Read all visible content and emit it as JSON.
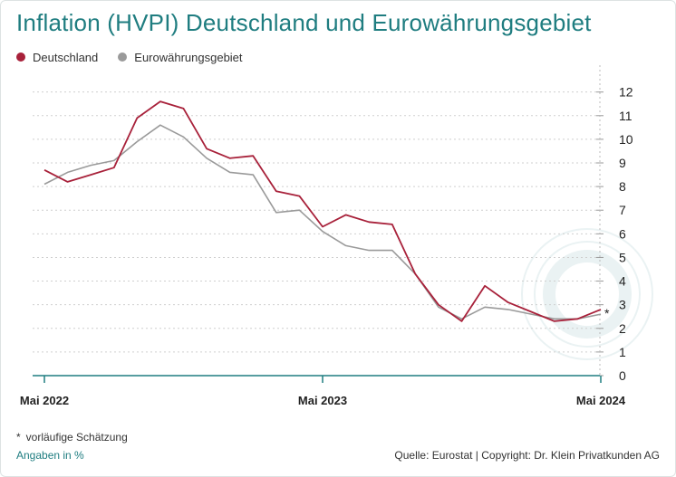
{
  "title": "Inflation (HVPI) Deutschland und Eurowährungsgebiet",
  "footnote": {
    "symbol": "*",
    "text": "vorläufige Schätzung"
  },
  "units_note": "Angaben in %",
  "source": "Quelle: Eurostat | Copyright: Dr. Klein Privatkunden AG",
  "watermark_icon": "euro-coin-icon",
  "chart_data": {
    "type": "line",
    "x": [
      "2022-05",
      "2022-06",
      "2022-07",
      "2022-08",
      "2022-09",
      "2022-10",
      "2022-11",
      "2022-12",
      "2023-01",
      "2023-02",
      "2023-03",
      "2023-04",
      "2023-05",
      "2023-06",
      "2023-07",
      "2023-08",
      "2023-09",
      "2023-10",
      "2023-11",
      "2023-12",
      "2024-01",
      "2024-02",
      "2024-03",
      "2024-04",
      "2024-05"
    ],
    "x_tick_labels": [
      {
        "x": "2022-05",
        "label": "Mai 2022"
      },
      {
        "x": "2023-05",
        "label": "Mai 2023"
      },
      {
        "x": "2024-05",
        "label": "Mai 2024"
      }
    ],
    "y_ticks": [
      0,
      1,
      2,
      3,
      4,
      5,
      6,
      7,
      8,
      9,
      10,
      11,
      12
    ],
    "ylim": [
      0,
      12.6
    ],
    "y_axis_side": "right",
    "grid": "horizontal-dotted",
    "legend_position": "top-left",
    "last_point_marker": "*",
    "series": [
      {
        "name": "Deutschland",
        "color": "#a8213a",
        "values": [
          8.7,
          8.2,
          8.5,
          8.8,
          10.9,
          11.6,
          11.3,
          9.6,
          9.2,
          9.3,
          7.8,
          7.6,
          6.3,
          6.8,
          6.5,
          6.4,
          4.3,
          3.0,
          2.3,
          3.8,
          3.1,
          2.7,
          2.3,
          2.4,
          2.8
        ]
      },
      {
        "name": "Eurowährungsgebiet",
        "color": "#9a9a9a",
        "values": [
          8.1,
          8.6,
          8.9,
          9.1,
          9.9,
          10.6,
          10.1,
          9.2,
          8.6,
          8.5,
          6.9,
          7.0,
          6.1,
          5.5,
          5.3,
          5.3,
          4.3,
          2.9,
          2.4,
          2.9,
          2.8,
          2.6,
          2.4,
          2.4,
          2.6
        ]
      }
    ]
  },
  "colors": {
    "title": "#1f7d80",
    "axis": "#1f7d80",
    "grid": "#cfcfcf"
  }
}
